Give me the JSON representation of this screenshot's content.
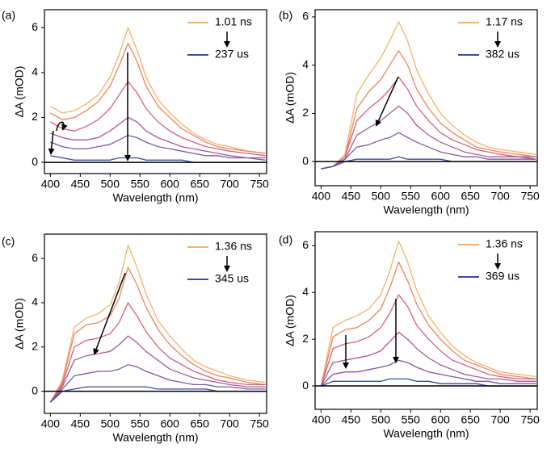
{
  "chart_data": [
    {
      "type": "line",
      "panel_label": "(a)",
      "x_label": "Wavelength (nm)",
      "y_label": "ΔA (mOD)",
      "x": [
        400,
        420,
        440,
        460,
        480,
        500,
        515,
        530,
        545,
        560,
        580,
        600,
        620,
        640,
        660,
        680,
        700,
        730,
        760
      ],
      "xlim": [
        390,
        762
      ],
      "ylim": [
        -0.5,
        6.8
      ],
      "xticks": [
        400,
        450,
        500,
        550,
        600,
        650,
        700,
        750
      ],
      "yticks": [
        0,
        2,
        4,
        6
      ],
      "series": [
        {
          "name": "1.01 ns",
          "color": "#f7b267",
          "values": [
            2.5,
            2.2,
            2.3,
            2.6,
            3.0,
            3.8,
            4.8,
            6.0,
            5.0,
            3.8,
            2.8,
            2.2,
            1.7,
            1.3,
            1.0,
            0.8,
            0.7,
            0.5,
            0.4
          ]
        },
        {
          "color": "#f0845c",
          "values": [
            2.2,
            1.9,
            2.0,
            2.3,
            2.7,
            3.4,
            4.3,
            5.3,
            4.5,
            3.4,
            2.5,
            2.0,
            1.5,
            1.2,
            0.9,
            0.7,
            0.6,
            0.5,
            0.4
          ]
        },
        {
          "color": "#d6607a",
          "values": [
            1.8,
            1.5,
            1.4,
            1.6,
            1.9,
            2.4,
            3.0,
            3.6,
            3.1,
            2.4,
            1.8,
            1.4,
            1.1,
            0.9,
            0.7,
            0.6,
            0.5,
            0.4,
            0.3
          ]
        },
        {
          "color": "#a85c96",
          "values": [
            1.3,
            1.1,
            1.0,
            1.0,
            1.1,
            1.4,
            1.7,
            2.0,
            1.8,
            1.4,
            1.1,
            0.9,
            0.7,
            0.6,
            0.5,
            0.4,
            0.3,
            0.2,
            0.2
          ]
        },
        {
          "color": "#7c5aa3",
          "values": [
            0.9,
            0.7,
            0.6,
            0.6,
            0.7,
            0.8,
            1.0,
            1.2,
            1.1,
            0.9,
            0.7,
            0.6,
            0.5,
            0.4,
            0.3,
            0.3,
            0.2,
            0.2,
            0.1
          ]
        },
        {
          "name": "237 us",
          "color": "#3b4c9b",
          "values": [
            0.3,
            0.2,
            0.1,
            0.1,
            0.1,
            0.1,
            0.2,
            0.2,
            0.2,
            0.1,
            0.1,
            0.1,
            0.1,
            0.0,
            0.0,
            0.0,
            0.0,
            0.0,
            0.0
          ]
        }
      ]
    },
    {
      "type": "line",
      "panel_label": "(b)",
      "x_label": "Wavelength (nm)",
      "y_label": "ΔA (mOD)",
      "x": [
        400,
        420,
        440,
        460,
        480,
        500,
        515,
        530,
        545,
        560,
        580,
        600,
        620,
        640,
        660,
        680,
        700,
        730,
        760
      ],
      "xlim": [
        390,
        762
      ],
      "ylim": [
        -1,
        6.3
      ],
      "xticks": [
        400,
        450,
        500,
        550,
        600,
        650,
        700,
        750
      ],
      "yticks": [
        0,
        2,
        4,
        6
      ],
      "series": [
        {
          "name": "1.17 ns",
          "color": "#f7b267",
          "values": [
            -0.3,
            -0.2,
            0.3,
            2.8,
            3.6,
            4.3,
            5.0,
            5.8,
            5.0,
            3.8,
            2.8,
            2.0,
            1.5,
            1.1,
            0.8,
            0.6,
            0.5,
            0.4,
            0.3
          ]
        },
        {
          "color": "#f0845c",
          "values": [
            -0.3,
            -0.2,
            0.2,
            2.2,
            2.9,
            3.4,
            4.0,
            4.6,
            4.0,
            3.0,
            2.2,
            1.6,
            1.2,
            0.9,
            0.6,
            0.5,
            0.4,
            0.3,
            0.2
          ]
        },
        {
          "color": "#d6607a",
          "values": [
            -0.3,
            -0.2,
            0.2,
            1.7,
            2.2,
            2.6,
            3.0,
            3.5,
            3.0,
            2.3,
            1.7,
            1.2,
            0.9,
            0.7,
            0.5,
            0.4,
            0.3,
            0.2,
            0.2
          ]
        },
        {
          "color": "#a85c96",
          "values": [
            -0.3,
            -0.2,
            0.1,
            1.1,
            1.4,
            1.7,
            2.0,
            2.3,
            2.0,
            1.5,
            1.1,
            0.8,
            0.6,
            0.4,
            0.3,
            0.2,
            0.2,
            0.2,
            0.1
          ]
        },
        {
          "color": "#7c5aa3",
          "values": [
            -0.3,
            -0.2,
            0.1,
            0.6,
            0.7,
            0.9,
            1.0,
            1.2,
            1.0,
            0.8,
            0.6,
            0.4,
            0.3,
            0.2,
            0.2,
            0.1,
            0.1,
            0.1,
            0.1
          ]
        },
        {
          "name": "382 us",
          "color": "#3b4c9b",
          "values": [
            -0.3,
            -0.2,
            0.0,
            0.1,
            0.1,
            0.1,
            0.1,
            0.2,
            0.1,
            0.1,
            0.1,
            0.1,
            0.0,
            0.0,
            0.0,
            0.0,
            0.0,
            0.0,
            0.0
          ]
        }
      ]
    },
    {
      "type": "line",
      "panel_label": "(c)",
      "x_label": "Wavelength (nm)",
      "y_label": "ΔA (mOD)",
      "x": [
        400,
        420,
        440,
        460,
        480,
        500,
        515,
        530,
        545,
        560,
        580,
        600,
        620,
        640,
        660,
        680,
        700,
        730,
        760
      ],
      "xlim": [
        390,
        762
      ],
      "ylim": [
        -1,
        7.1
      ],
      "xticks": [
        400,
        450,
        500,
        550,
        600,
        650,
        700,
        750
      ],
      "yticks": [
        0,
        2,
        4,
        6
      ],
      "series": [
        {
          "name": "1.36 ns",
          "color": "#f7b267",
          "values": [
            -0.5,
            0.5,
            2.9,
            3.3,
            3.5,
            3.9,
            4.9,
            6.6,
            5.6,
            4.4,
            3.2,
            2.5,
            1.9,
            1.4,
            1.1,
            0.9,
            0.7,
            0.5,
            0.4
          ]
        },
        {
          "color": "#f0845c",
          "values": [
            -0.5,
            0.4,
            2.6,
            3.0,
            3.1,
            3.4,
            4.2,
            5.6,
            4.8,
            3.8,
            2.8,
            2.1,
            1.6,
            1.2,
            0.9,
            0.7,
            0.6,
            0.4,
            0.3
          ]
        },
        {
          "color": "#d6607a",
          "values": [
            -0.5,
            0.3,
            2.0,
            2.3,
            2.4,
            2.6,
            3.1,
            4.0,
            3.4,
            2.7,
            2.0,
            1.5,
            1.2,
            0.9,
            0.7,
            0.5,
            0.4,
            0.3,
            0.3
          ]
        },
        {
          "color": "#a85c96",
          "values": [
            -0.5,
            0.2,
            1.4,
            1.6,
            1.7,
            1.8,
            2.1,
            2.5,
            2.2,
            1.8,
            1.4,
            1.0,
            0.8,
            0.6,
            0.5,
            0.4,
            0.3,
            0.2,
            0.2
          ]
        },
        {
          "color": "#7c5aa3",
          "values": [
            -0.5,
            0.1,
            0.7,
            0.8,
            0.9,
            0.9,
            1.0,
            1.2,
            1.1,
            0.9,
            0.7,
            0.5,
            0.4,
            0.3,
            0.3,
            0.2,
            0.2,
            0.1,
            0.1
          ]
        },
        {
          "name": "345 us",
          "color": "#3b4c9b",
          "values": [
            -0.5,
            0.0,
            0.1,
            0.2,
            0.2,
            0.2,
            0.2,
            0.2,
            0.2,
            0.2,
            0.1,
            0.1,
            0.1,
            0.1,
            0.1,
            0.0,
            0.0,
            0.0,
            0.0
          ]
        }
      ]
    },
    {
      "type": "line",
      "panel_label": "(d)",
      "x_label": "Wavelength (nm)",
      "y_label": "ΔA (mOD)",
      "x": [
        400,
        420,
        440,
        460,
        480,
        500,
        515,
        530,
        545,
        560,
        580,
        600,
        620,
        640,
        660,
        680,
        700,
        730,
        760
      ],
      "xlim": [
        390,
        762
      ],
      "ylim": [
        -1,
        6.6
      ],
      "xticks": [
        400,
        450,
        500,
        550,
        600,
        650,
        700,
        750
      ],
      "yticks": [
        0,
        2,
        4,
        6
      ],
      "series": [
        {
          "name": "1.36 ns",
          "color": "#f7b267",
          "values": [
            0.0,
            2.5,
            2.8,
            3.0,
            3.3,
            3.9,
            4.9,
            6.2,
            5.3,
            4.1,
            3.0,
            2.3,
            1.7,
            1.3,
            1.0,
            0.8,
            0.6,
            0.5,
            0.4
          ]
        },
        {
          "color": "#f0845c",
          "values": [
            0.0,
            2.1,
            2.4,
            2.5,
            2.8,
            3.3,
            4.2,
            5.3,
            4.5,
            3.5,
            2.6,
            2.0,
            1.5,
            1.1,
            0.9,
            0.7,
            0.5,
            0.4,
            0.3
          ]
        },
        {
          "color": "#d6607a",
          "values": [
            0.0,
            1.6,
            1.8,
            1.9,
            2.1,
            2.5,
            3.1,
            3.9,
            3.4,
            2.6,
            2.0,
            1.5,
            1.1,
            0.9,
            0.7,
            0.5,
            0.4,
            0.3,
            0.3
          ]
        },
        {
          "color": "#a85c96",
          "values": [
            0.0,
            1.0,
            1.1,
            1.2,
            1.3,
            1.5,
            1.9,
            2.3,
            2.0,
            1.6,
            1.2,
            0.9,
            0.7,
            0.5,
            0.4,
            0.3,
            0.3,
            0.2,
            0.2
          ]
        },
        {
          "color": "#7c5aa3",
          "values": [
            0.0,
            0.5,
            0.6,
            0.6,
            0.7,
            0.8,
            0.9,
            1.1,
            1.0,
            0.8,
            0.6,
            0.5,
            0.4,
            0.3,
            0.2,
            0.2,
            0.1,
            0.1,
            0.1
          ]
        },
        {
          "name": "369 us",
          "color": "#3b4c9b",
          "values": [
            0.0,
            0.2,
            0.2,
            0.2,
            0.2,
            0.2,
            0.3,
            0.3,
            0.3,
            0.2,
            0.2,
            0.1,
            0.1,
            0.1,
            0.1,
            0.0,
            0.0,
            0.0,
            0.0
          ]
        }
      ]
    }
  ]
}
